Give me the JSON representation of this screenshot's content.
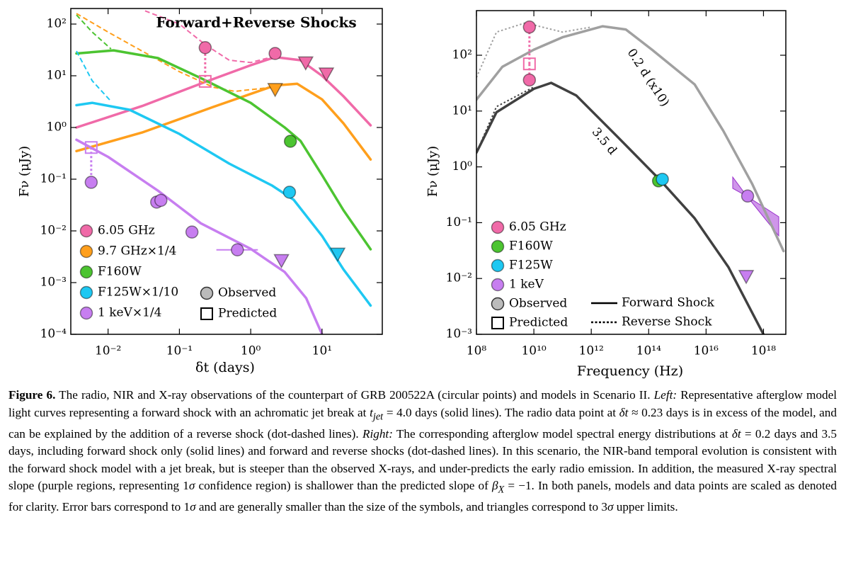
{
  "chart_data": [
    {
      "type": "line",
      "log_x": true,
      "log_y": true,
      "title": "Forward+Reverse Shocks",
      "xlabel": "δt (days)",
      "ylabel": "Fν (μJy)",
      "xlim": [
        0.003,
        70
      ],
      "ylim": [
        0.0001,
        200
      ],
      "xticks": [
        {
          "value": 0.01,
          "label": "10⁻²"
        },
        {
          "value": 0.1,
          "label": "10⁻¹"
        },
        {
          "value": 1,
          "label": "10⁰"
        },
        {
          "value": 10,
          "label": "10¹"
        }
      ],
      "yticks": [
        {
          "value": 0.0001,
          "label": "10⁻⁴"
        },
        {
          "value": 0.001,
          "label": "10⁻³"
        },
        {
          "value": 0.01,
          "label": "10⁻²"
        },
        {
          "value": 0.1,
          "label": "10⁻¹"
        },
        {
          "value": 1,
          "label": "10⁰"
        },
        {
          "value": 10,
          "label": "10¹"
        },
        {
          "value": 100,
          "label": "10²"
        }
      ],
      "curves": [
        {
          "color": "#f06aa8",
          "x": [
            0.0036,
            0.03,
            0.23,
            1,
            2.2,
            5,
            10,
            20,
            48
          ],
          "values": [
            1.0,
            2.6,
            7.6,
            16,
            23,
            20,
            10,
            4,
            1.1
          ],
          "reverse_x": [
            0.033,
            0.1,
            0.23,
            0.5,
            1,
            2.2
          ],
          "reverse_values": [
            180,
            100,
            40,
            20,
            18,
            24
          ]
        },
        {
          "color": "#ff9f1c",
          "x": [
            0.0036,
            0.03,
            0.3,
            2.2,
            4.5,
            10,
            20,
            48
          ],
          "values": [
            0.35,
            0.8,
            2.5,
            6.5,
            7,
            3.5,
            1.2,
            0.24
          ],
          "reverse_x": [
            0.0036,
            0.01,
            0.03,
            0.1,
            0.3,
            0.6,
            2
          ],
          "reverse_values": [
            160,
            70,
            30,
            12,
            6,
            5,
            6
          ]
        },
        {
          "color": "#4cc431",
          "x": [
            0.0036,
            0.012,
            0.05,
            0.2,
            1,
            3,
            5,
            10,
            20,
            48
          ],
          "values": [
            27,
            31,
            22,
            9,
            3,
            1,
            0.55,
            0.12,
            0.025,
            0.0044
          ],
          "reverse_x": [
            0.0036,
            0.006,
            0.011
          ],
          "reverse_values": [
            150,
            70,
            33
          ]
        },
        {
          "color": "#1ec8f2",
          "x": [
            0.0036,
            0.006,
            0.02,
            0.1,
            0.5,
            2,
            4,
            10,
            20,
            48
          ],
          "values": [
            2.7,
            3,
            2.2,
            0.75,
            0.2,
            0.075,
            0.04,
            0.008,
            0.0018,
            0.00036
          ],
          "reverse_x": [
            0.0036,
            0.006,
            0.011
          ],
          "reverse_values": [
            30,
            8,
            3.2
          ]
        },
        {
          "color": "#c77ef0",
          "x": [
            0.0036,
            0.01,
            0.05,
            0.2,
            1,
            3,
            6,
            10
          ],
          "values": [
            0.58,
            0.27,
            0.06,
            0.014,
            0.0045,
            0.0016,
            0.0005,
            0.0001
          ]
        }
      ],
      "series": [
        {
          "name": "6.05 GHz",
          "color": "#f06aa8",
          "obs_x": [
            0.23,
            2.2
          ],
          "obs_values": [
            35,
            27
          ],
          "pred_x": [
            0.23
          ],
          "pred_values": [
            7.8
          ],
          "ul_x": [
            5.9,
            11.5
          ],
          "ul_values": [
            18,
            11
          ]
        },
        {
          "name": "9.7 GHz×1/4",
          "color": "#ff9f1c",
          "ul_x": [
            2.2
          ],
          "ul_values": [
            5.5
          ]
        },
        {
          "name": "F160W",
          "color": "#4cc431",
          "obs_x": [
            3.6
          ],
          "obs_values": [
            0.54
          ]
        },
        {
          "name": "F125W×1/10",
          "color": "#1ec8f2",
          "obs_x": [
            3.5
          ],
          "obs_values": [
            0.056
          ],
          "ul_x": [
            16.6
          ],
          "ul_values": [
            0.0036
          ]
        },
        {
          "name": "1 keV×1/4",
          "color": "#c77ef0",
          "obs_x": [
            0.0058,
            0.048,
            0.055,
            0.15,
            0.65
          ],
          "obs_values": [
            0.087,
            0.036,
            0.039,
            0.0095,
            0.0043
          ],
          "obs_xrange": [
            null,
            null,
            null,
            null,
            [
              0.33,
              1.26
            ]
          ],
          "pred_x": [
            0.0058
          ],
          "pred_values": [
            0.41
          ],
          "ul_x": [
            2.7
          ],
          "ul_values": [
            0.0027
          ]
        }
      ],
      "marker_legend": [
        "Observed",
        "Predicted"
      ]
    },
    {
      "type": "line",
      "log_x": true,
      "log_y": true,
      "xlabel": "Frequency (Hz)",
      "ylabel": "Fν (μJy)",
      "xlim": [
        100000000,
        6000000000000000000
      ],
      "ylim": [
        0.001,
        630
      ],
      "xticks": [
        {
          "value": 100000000,
          "label": "10⁸"
        },
        {
          "value": 10000000000,
          "label": "10¹⁰"
        },
        {
          "value": 1000000000000,
          "label": "10¹²"
        },
        {
          "value": 100000000000000,
          "label": "10¹⁴"
        },
        {
          "value": 10000000000000000,
          "label": "10¹⁶"
        },
        {
          "value": 1000000000000000000,
          "label": "10¹⁸"
        }
      ],
      "yticks": [
        {
          "value": 0.001,
          "label": "10⁻³"
        },
        {
          "value": 0.01,
          "label": "10⁻²"
        },
        {
          "value": 0.1,
          "label": "10⁻¹"
        },
        {
          "value": 1,
          "label": "10⁰"
        },
        {
          "value": 10,
          "label": "10¹"
        },
        {
          "value": 100,
          "label": "10²"
        }
      ],
      "curves": [
        {
          "name": "0.2 d (x10)",
          "color": "#a0a0a0",
          "x": [
            100000000,
            800000000,
            10000000000,
            100000000000,
            2500000000000,
            16000000000000,
            130000000000000,
            4000000000000000,
            40000000000000000,
            400000000000000000,
            5000000000000000000
          ],
          "values": [
            16,
            62,
            126,
            210,
            330,
            290,
            126,
            30,
            4.4,
            0.5,
            0.031
          ],
          "reverse_x": [
            100000000,
            500000000,
            5000000000,
            100000000000,
            1000000000000
          ],
          "reverse_values": [
            40,
            260,
            380,
            260,
            320
          ]
        },
        {
          "name": "3.5 d",
          "color": "#404040",
          "x": [
            100000000,
            500000000,
            10000000000,
            40000000000,
            300000000000,
            8000000000000,
            250000000000000,
            4000000000000000,
            60000000000000000,
            1000000000000000000
          ],
          "values": [
            1.8,
            9.5,
            25,
            32,
            19,
            3.5,
            0.58,
            0.12,
            0.016,
            0.001
          ],
          "reverse_x": [
            100000000,
            500000000,
            10000000000
          ],
          "reverse_values": [
            1.8,
            12,
            27
          ]
        }
      ],
      "series": [
        {
          "name": "6.05 GHz",
          "color": "#f06aa8",
          "obs_x": [
            7000000000,
            7000000000
          ],
          "obs_values": [
            320,
            36
          ],
          "pred_x": [
            7000000000
          ],
          "pred_values": [
            70
          ]
        },
        {
          "name": "F160W",
          "color": "#4cc431",
          "obs_x": [
            220000000000000
          ],
          "obs_values": [
            0.56
          ]
        },
        {
          "name": "F125W",
          "color": "#1ec8f2",
          "obs_x": [
            300000000000000
          ],
          "obs_values": [
            0.6
          ]
        },
        {
          "name": "1 keV",
          "color": "#c77ef0",
          "obs_x": [
            280000000000000000
          ],
          "obs_values": [
            0.3
          ],
          "ul_x": [
            250000000000000000
          ],
          "ul_values": [
            0.011
          ]
        }
      ],
      "marker_legend": [
        "Observed",
        "Predicted"
      ],
      "line_legend": [
        "Forward Shock",
        "Reverse Shock"
      ]
    }
  ],
  "caption": {
    "label": "Figure 6.",
    "parts": [
      {
        "text": " The radio, NIR and X-ray observations of the counterpart of GRB 200522A (circular points) and models in Scenario II. "
      },
      {
        "text": "Left:",
        "style": "italic"
      },
      {
        "text": " Representative afterglow model light curves representing a forward shock with an achromatic jet break at "
      },
      {
        "text": "t",
        "style": "italic"
      },
      {
        "text": "jet",
        "style": "sub"
      },
      {
        "text": " = 4.0 days (solid lines). The radio data point at "
      },
      {
        "text": "δt",
        "style": "italic"
      },
      {
        "text": " ≈ 0.23 days is in excess of the model, and can be explained by the addition of a reverse shock (dot-dashed lines). "
      },
      {
        "text": "Right:",
        "style": "italic"
      },
      {
        "text": " The corresponding afterglow model spectral energy distributions at "
      },
      {
        "text": "δt",
        "style": "italic"
      },
      {
        "text": " = 0.2 days and 3.5 days, including forward shock only (solid lines) and forward and reverse shocks (dot-dashed lines). In this scenario, the NIR-band temporal evolution is consistent with the forward shock model with a jet break, but is steeper than the observed X-rays, and under-predicts the early radio emission. In addition, the measured X-ray spectral slope (purple regions, representing 1"
      },
      {
        "text": "σ",
        "style": "italic"
      },
      {
        "text": " confidence region) is shallower than the predicted slope of "
      },
      {
        "text": "β",
        "style": "italic"
      },
      {
        "text": "X",
        "style": "sub"
      },
      {
        "text": " = −1. In both panels, models and data points are scaled as denoted for clarity. Error bars correspond to 1"
      },
      {
        "text": "σ",
        "style": "italic"
      },
      {
        "text": " and are generally smaller than the size of the symbols, and triangles correspond to 3"
      },
      {
        "text": "σ",
        "style": "italic"
      },
      {
        "text": " upper limits."
      }
    ]
  }
}
